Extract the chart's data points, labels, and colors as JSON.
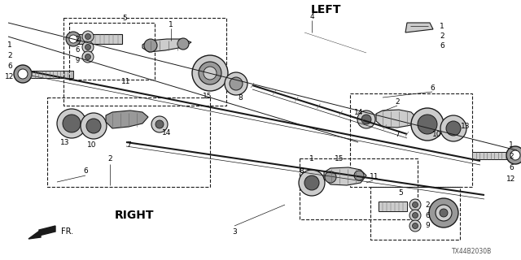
{
  "bg_color": "#ffffff",
  "line_color": "#1a1a1a",
  "text_color": "#000000",
  "gray1": "#cccccc",
  "gray2": "#999999",
  "gray3": "#666666",
  "gray4": "#444444",
  "left_label": "LEFT",
  "right_label": "RIGHT",
  "fr_label": "FR.",
  "diagram_code": "TX44B2030B"
}
